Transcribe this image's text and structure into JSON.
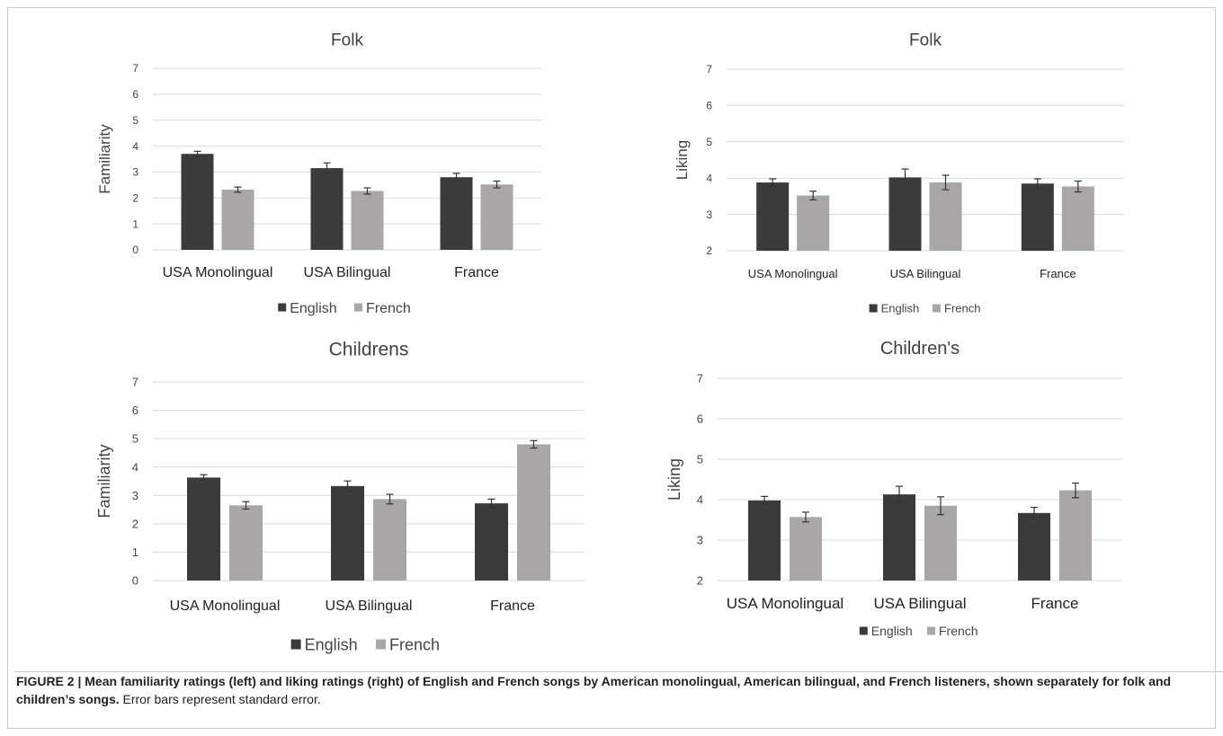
{
  "colors": {
    "english": "#3b3b3b",
    "french": "#aaa6a6",
    "grid": "#d9d9d9",
    "error": "#333333"
  },
  "chart_data": [
    {
      "type": "bar",
      "title": "Folk",
      "ylabel": "Familiarity",
      "ylim": [
        0,
        7
      ],
      "yticks": [
        "0",
        "1",
        "2",
        "3",
        "4",
        "5",
        "6",
        "7"
      ],
      "grid": true,
      "legend": "bottom",
      "categories": [
        "USA Monolingual",
        "USA Bilingual",
        "France"
      ],
      "series": [
        {
          "name": "English",
          "values": [
            3.7,
            3.15,
            2.8
          ],
          "errors": [
            0.1,
            0.2,
            0.15
          ]
        },
        {
          "name": "French",
          "values": [
            2.32,
            2.27,
            2.52
          ],
          "errors": [
            0.1,
            0.12,
            0.13
          ]
        }
      ]
    },
    {
      "type": "bar",
      "title": "Folk",
      "ylabel": "Liking",
      "ylim": [
        2,
        7
      ],
      "yticks": [
        "2",
        "3",
        "4",
        "5",
        "6",
        "7"
      ],
      "grid": true,
      "legend": "bottom",
      "categories": [
        "USA Monolingual",
        "USA Bilingual",
        "France"
      ],
      "series": [
        {
          "name": "English",
          "values": [
            3.88,
            4.02,
            3.85
          ],
          "errors": [
            0.1,
            0.23,
            0.13
          ]
        },
        {
          "name": "French",
          "values": [
            3.52,
            3.88,
            3.77
          ],
          "errors": [
            0.12,
            0.2,
            0.15
          ]
        }
      ]
    },
    {
      "type": "bar",
      "title": "Childrens",
      "ylabel": "Familiarity",
      "ylim": [
        0,
        7
      ],
      "yticks": [
        "0",
        "1",
        "2",
        "3",
        "4",
        "5",
        "6",
        "7"
      ],
      "grid": true,
      "legend": "bottom",
      "categories": [
        "USA Monolingual",
        "USA Bilingual",
        "France"
      ],
      "series": [
        {
          "name": "English",
          "values": [
            3.63,
            3.33,
            2.72
          ],
          "errors": [
            0.1,
            0.18,
            0.15
          ]
        },
        {
          "name": "French",
          "values": [
            2.65,
            2.87,
            4.8
          ],
          "errors": [
            0.13,
            0.17,
            0.13
          ]
        }
      ]
    },
    {
      "type": "bar",
      "title": "Children's",
      "ylabel": "Liking",
      "ylim": [
        2,
        7
      ],
      "yticks": [
        "2",
        "3",
        "4",
        "5",
        "6",
        "7"
      ],
      "grid": true,
      "legend": "bottom",
      "categories": [
        "USA Monolingual",
        "USA Bilingual",
        "France"
      ],
      "series": [
        {
          "name": "English",
          "values": [
            3.98,
            4.13,
            3.67
          ],
          "errors": [
            0.1,
            0.2,
            0.14
          ]
        },
        {
          "name": "French",
          "values": [
            3.57,
            3.85,
            4.23
          ],
          "errors": [
            0.12,
            0.22,
            0.18
          ]
        }
      ]
    }
  ],
  "caption": {
    "bold": "FIGURE 2 | Mean familiarity ratings (left) and liking ratings (right) of English and French songs by American monolingual, American bilingual, and French listeners, shown separately for folk and children’s songs.",
    "normal": " Error bars represent standard error."
  }
}
